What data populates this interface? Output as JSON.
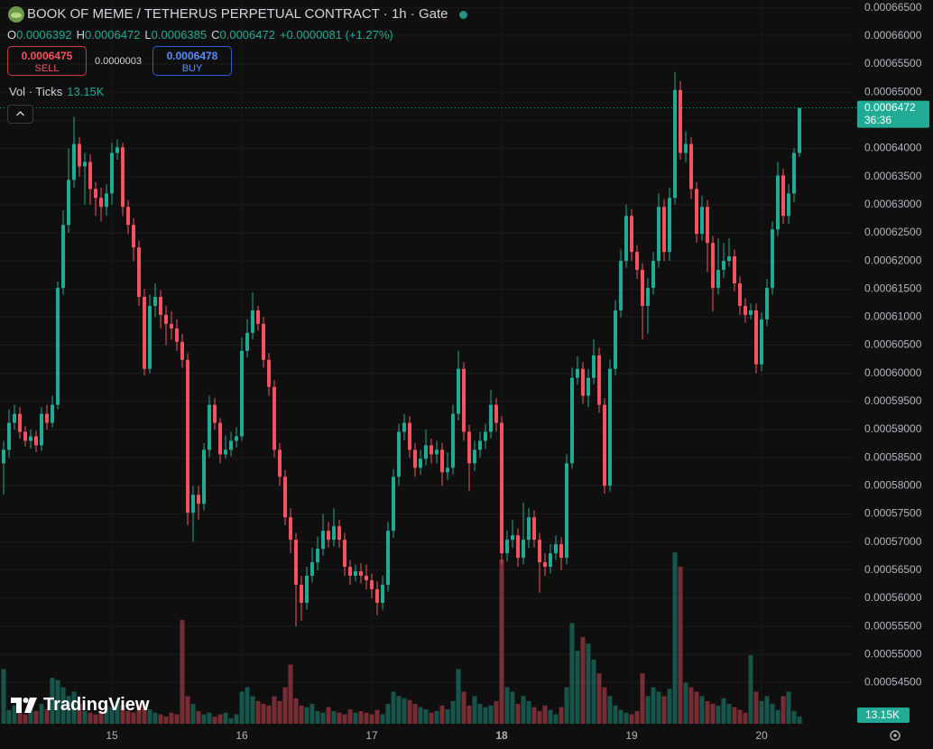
{
  "header": {
    "title": "BOOK OF MEME / TETHERUS PERPETUAL CONTRACT · 1h · Gate",
    "ohlc_keys": [
      "O",
      "H",
      "L",
      "C"
    ],
    "change": "+0.0000081 (+1.27%)",
    "sell_price": "0.0006475",
    "sell": "SELL",
    "spread": "0.0000003",
    "buy_price": "0.0006478",
    "buy": "BUY",
    "volume_title": "Vol · Ticks",
    "countdown": "36:36",
    "watermark": "TradingView"
  },
  "chart_data": {
    "type": "candlestick",
    "up_color": "#22ab94",
    "down_color": "#f7525f",
    "grid": true,
    "ylim": [
      0.0005372,
      0.0006664
    ],
    "yticks": [
      {
        "value": 0.000665,
        "label": "0.00066500"
      },
      {
        "value": 0.00066,
        "label": "0.00066000"
      },
      {
        "value": 0.000655,
        "label": "0.00065500"
      },
      {
        "value": 0.00065,
        "label": "0.00065000"
      },
      {
        "value": 0.000645,
        "label": "0.00064500"
      },
      {
        "value": 0.00064,
        "label": "0.00064000"
      },
      {
        "value": 0.000635,
        "label": "0.00063500"
      },
      {
        "value": 0.00063,
        "label": "0.00063000"
      },
      {
        "value": 0.000625,
        "label": "0.00062500"
      },
      {
        "value": 0.00062,
        "label": "0.00062000"
      },
      {
        "value": 0.000615,
        "label": "0.00061500"
      },
      {
        "value": 0.00061,
        "label": "0.00061000"
      },
      {
        "value": 0.000605,
        "label": "0.00060500"
      },
      {
        "value": 0.0006,
        "label": "0.00060000"
      },
      {
        "value": 0.000595,
        "label": "0.00059500"
      },
      {
        "value": 0.00059,
        "label": "0.00059000"
      },
      {
        "value": 0.000585,
        "label": "0.00058500"
      },
      {
        "value": 0.00058,
        "label": "0.00058000"
      },
      {
        "value": 0.000575,
        "label": "0.00057500"
      },
      {
        "value": 0.00057,
        "label": "0.00057000"
      },
      {
        "value": 0.000565,
        "label": "0.00056500"
      },
      {
        "value": 0.00056,
        "label": "0.00056000"
      },
      {
        "value": 0.000555,
        "label": "0.00055500"
      },
      {
        "value": 0.00055,
        "label": "0.00055000"
      },
      {
        "value": 0.000545,
        "label": "0.00054500"
      }
    ],
    "xticks": [
      {
        "value": 20,
        "label": "15"
      },
      {
        "value": 44,
        "label": "16"
      },
      {
        "value": 68,
        "label": "17"
      },
      {
        "value": 92,
        "label": "18"
      },
      {
        "value": 116,
        "label": "19"
      },
      {
        "value": 140,
        "label": "20"
      }
    ],
    "open": [
      0.000584,
      0.0005864,
      0.0005912,
      0.0005928,
      0.0005896,
      0.000588,
      0.0005888,
      0.0005872,
      0.0005928,
      0.0005912,
      0.0005944,
      0.0006152,
      0.0006264,
      0.0006344,
      0.0006408,
      0.0006368,
      0.0006376,
      0.0006328,
      0.0006312,
      0.0006296,
      0.000632,
      0.0006392,
      0.0006402,
      0.0006296,
      0.0006264,
      0.0006224,
      0.0006136,
      0.0006008,
      0.000612,
      0.0006136,
      0.0006104,
      0.0006088,
      0.000608,
      0.0006056,
      0.0006024,
      0.0005752,
      0.0005784,
      0.0005768,
      0.0005864,
      0.0005944,
      0.0005912,
      0.0005856,
      0.0005864,
      0.000588,
      0.0005888,
      0.000604,
      0.0006072,
      0.0006112,
      0.0006088,
      0.0006024,
      0.0005976,
      0.0005864,
      0.0005816,
      0.0005744,
      0.0005704,
      0.0005624,
      0.0005592,
      0.000564,
      0.0005664,
      0.0005688,
      0.000572,
      0.0005704,
      0.0005728,
      0.0005704,
      0.0005656,
      0.000564,
      0.0005648,
      0.000564,
      0.0005632,
      0.0005616,
      0.0005592,
      0.0005624,
      0.000572,
      0.0005816,
      0.0005896,
      0.0005912,
      0.0005864,
      0.0005832,
      0.0005848,
      0.0005872,
      0.0005856,
      0.0005864,
      0.0005824,
      0.0005832,
      0.0005928,
      0.0006008,
      0.0005896,
      0.000584,
      0.0005864,
      0.000588,
      0.0005896,
      0.0005944,
      0.0005912,
      0.000568,
      0.0005704,
      0.0005712,
      0.0005672,
      0.0005704,
      0.0005744,
      0.0005704,
      0.0005664,
      0.0005656,
      0.000568,
      0.0005696,
      0.0005672,
      0.000584,
      0.0005992,
      0.0006008,
      0.000596,
      0.0005992,
      0.0006032,
      0.0005944,
      0.00058,
      0.0006008,
      0.0006112,
      0.00062,
      0.000628,
      0.0006216,
      0.0006184,
      0.000612,
      0.0006152,
      0.00062,
      0.0006296,
      0.0006216,
      0.0006312,
      0.0006504,
      0.0006392,
      0.0006408,
      0.0006328,
      0.0006248,
      0.0006296,
      0.0006232,
      0.0006152,
      0.0006184,
      0.00062,
      0.0006208,
      0.000616,
      0.000612,
      0.0006104,
      0.0006112,
      0.0006016,
      0.0006096,
      0.0006152,
      0.0006256,
      0.0006352,
      0.000628,
      0.000632,
      0.0006392
    ],
    "high": [
      0.000588,
      0.0005936,
      0.0005944,
      0.000594,
      0.0005906,
      0.00059,
      0.0005898,
      0.000594,
      0.0005944,
      0.000596,
      0.0006164,
      0.000629,
      0.00064,
      0.0006456,
      0.000642,
      0.0006392,
      0.000639,
      0.000634,
      0.000633,
      0.0006336,
      0.000641,
      0.0006416,
      0.000641,
      0.0006308,
      0.0006276,
      0.0006236,
      0.000615,
      0.000614,
      0.000616,
      0.0006148,
      0.000612,
      0.000611,
      0.0006096,
      0.000607,
      0.0006036,
      0.00058,
      0.00058,
      0.0005876,
      0.000596,
      0.0005956,
      0.000592,
      0.000589,
      0.0005896,
      0.0005904,
      0.0006064,
      0.0006096,
      0.0006144,
      0.000612,
      0.00061,
      0.0006036,
      0.0005988,
      0.0005876,
      0.0005828,
      0.000576,
      0.0005716,
      0.000564,
      0.0005656,
      0.000569,
      0.000571,
      0.000575,
      0.0005736,
      0.000576,
      0.000574,
      0.0005716,
      0.0005668,
      0.000566,
      0.0005662,
      0.000566,
      0.0005644,
      0.000563,
      0.000564,
      0.0005736,
      0.000583,
      0.000591,
      0.0005928,
      0.0005924,
      0.0005876,
      0.0005864,
      0.00059,
      0.0005884,
      0.000588,
      0.0005876,
      0.000586,
      0.0005944,
      0.000604,
      0.000602,
      0.0005908,
      0.000588,
      0.0005896,
      0.000591,
      0.000597,
      0.0005956,
      0.0005924,
      0.000572,
      0.000574,
      0.0005724,
      0.000577,
      0.000576,
      0.0005756,
      0.0005716,
      0.000568,
      0.0005696,
      0.0005712,
      0.0005708,
      0.0005856,
      0.000601,
      0.000603,
      0.000602,
      0.0006008,
      0.000606,
      0.0006046,
      0.0005956,
      0.0006024,
      0.000613,
      0.000622,
      0.00063,
      0.0006292,
      0.0006228,
      0.0006196,
      0.000617,
      0.0006216,
      0.000632,
      0.000631,
      0.000633,
      0.0006536,
      0.000652,
      0.000643,
      0.000642,
      0.000634,
      0.0006316,
      0.0006308,
      0.0006244,
      0.000624,
      0.0006232,
      0.000624,
      0.000622,
      0.0006172,
      0.0006134,
      0.0006124,
      0.0006124,
      0.0006108,
      0.0006168,
      0.000627,
      0.0006376,
      0.0006364,
      0.0006336,
      0.00064,
      0.0006472
    ],
    "low": [
      0.0005784,
      0.000585,
      0.00059,
      0.0005884,
      0.000587,
      0.0005866,
      0.000586,
      0.0005862,
      0.00059,
      0.0005904,
      0.0005936,
      0.000614,
      0.000625,
      0.000633,
      0.000635,
      0.00063,
      0.00063,
      0.000628,
      0.000627,
      0.000628,
      0.00063,
      0.000638,
      0.000628,
      0.0006248,
      0.00062,
      0.000612,
      0.0005996,
      0.0006,
      0.00061,
      0.000608,
      0.000605,
      0.000606,
      0.000604,
      0.000601,
      0.000573,
      0.00057,
      0.000574,
      0.0005756,
      0.000585,
      0.00059,
      0.000584,
      0.0005848,
      0.0005852,
      0.0005868,
      0.000588,
      0.0006028,
      0.000606,
      0.0006076,
      0.000601,
      0.000596,
      0.000585,
      0.00058,
      0.000573,
      0.000568,
      0.000555,
      0.000556,
      0.000558,
      0.0005628,
      0.000565,
      0.0005676,
      0.000569,
      0.0005692,
      0.000569,
      0.000564,
      0.0005624,
      0.000563,
      0.0005626,
      0.0005616,
      0.00056,
      0.000557,
      0.000558,
      0.0005612,
      0.0005708,
      0.00058,
      0.000588,
      0.000585,
      0.0005816,
      0.000582,
      0.0005836,
      0.000584,
      0.000584,
      0.00058,
      0.000581,
      0.000582,
      0.0005916,
      0.000588,
      0.000579,
      0.0005826,
      0.000585,
      0.0005866,
      0.0005884,
      0.0005896,
      0.000566,
      0.0005666,
      0.000569,
      0.0005656,
      0.000566,
      0.000569,
      0.000569,
      0.000561,
      0.000564,
      0.0005644,
      0.0005668,
      0.000565,
      0.000566,
      0.000583,
      0.000598,
      0.0005946,
      0.000594,
      0.000598,
      0.000593,
      0.0005786,
      0.000579,
      0.0005996,
      0.00061,
      0.0006188,
      0.00062,
      0.0006168,
      0.000606,
      0.000607,
      0.000614,
      0.0006188,
      0.00062,
      0.00062,
      0.00063,
      0.000638,
      0.0006376,
      0.000631,
      0.0006232,
      0.0006236,
      0.000618,
      0.000611,
      0.000614,
      0.000617,
      0.000619,
      0.0006146,
      0.0006104,
      0.000609,
      0.0006096,
      0.0006,
      0.0006004,
      0.0006084,
      0.000614,
      0.0006244,
      0.0006266,
      0.0006266,
      0.0006304,
      0.0006385
    ],
    "close": [
      0.0005864,
      0.0005912,
      0.0005928,
      0.0005896,
      0.000588,
      0.0005888,
      0.0005872,
      0.0005928,
      0.0005912,
      0.0005944,
      0.0006152,
      0.0006264,
      0.0006344,
      0.0006408,
      0.0006368,
      0.0006376,
      0.0006328,
      0.0006312,
      0.0006296,
      0.000632,
      0.0006392,
      0.0006402,
      0.0006296,
      0.0006264,
      0.0006224,
      0.0006136,
      0.0006008,
      0.000612,
      0.0006136,
      0.0006104,
      0.0006088,
      0.000608,
      0.0006056,
      0.0006024,
      0.0005752,
      0.0005784,
      0.0005768,
      0.0005864,
      0.0005944,
      0.0005912,
      0.0005856,
      0.0005864,
      0.000588,
      0.0005888,
      0.000604,
      0.0006072,
      0.0006112,
      0.0006088,
      0.0006024,
      0.0005976,
      0.0005864,
      0.0005816,
      0.0005744,
      0.0005704,
      0.0005624,
      0.0005592,
      0.000564,
      0.0005664,
      0.0005688,
      0.000572,
      0.0005704,
      0.0005728,
      0.0005704,
      0.0005656,
      0.000564,
      0.0005648,
      0.000564,
      0.0005632,
      0.0005616,
      0.0005592,
      0.0005624,
      0.000572,
      0.0005816,
      0.0005896,
      0.0005912,
      0.0005864,
      0.0005832,
      0.0005848,
      0.0005872,
      0.0005856,
      0.0005864,
      0.0005824,
      0.0005832,
      0.0005928,
      0.0006008,
      0.0005896,
      0.000584,
      0.0005864,
      0.000588,
      0.0005896,
      0.0005944,
      0.0005912,
      0.000568,
      0.0005704,
      0.0005712,
      0.0005672,
      0.0005704,
      0.0005744,
      0.0005704,
      0.0005664,
      0.0005656,
      0.000568,
      0.0005696,
      0.0005672,
      0.000584,
      0.0005992,
      0.0006008,
      0.000596,
      0.0005992,
      0.0006032,
      0.0005944,
      0.00058,
      0.0006008,
      0.0006112,
      0.00062,
      0.000628,
      0.0006216,
      0.0006184,
      0.000612,
      0.0006152,
      0.00062,
      0.0006296,
      0.0006216,
      0.0006312,
      0.0006504,
      0.0006392,
      0.0006408,
      0.0006328,
      0.0006248,
      0.0006296,
      0.0006232,
      0.0006152,
      0.0006184,
      0.00062,
      0.0006208,
      0.000616,
      0.000612,
      0.0006104,
      0.0006112,
      0.0006016,
      0.0006096,
      0.0006152,
      0.0006256,
      0.0006352,
      0.000628,
      0.000632,
      0.0006392,
      0.0006472
    ],
    "volume": [
      99,
      25,
      33,
      20,
      17,
      30,
      23,
      36,
      26,
      83,
      79,
      66,
      50,
      58,
      36,
      23,
      20,
      17,
      23,
      33,
      30,
      41,
      33,
      23,
      20,
      33,
      36,
      26,
      20,
      17,
      13,
      20,
      17,
      188,
      50,
      36,
      23,
      17,
      20,
      13,
      17,
      20,
      10,
      17,
      58,
      66,
      50,
      41,
      36,
      33,
      50,
      41,
      66,
      107,
      46,
      33,
      30,
      36,
      23,
      20,
      30,
      23,
      20,
      17,
      26,
      20,
      23,
      20,
      17,
      25,
      17,
      36,
      58,
      50,
      46,
      43,
      36,
      30,
      26,
      20,
      23,
      33,
      26,
      41,
      99,
      58,
      33,
      50,
      36,
      30,
      33,
      41,
      297,
      66,
      58,
      36,
      50,
      41,
      30,
      23,
      33,
      25,
      17,
      30,
      66,
      182,
      132,
      157,
      145,
      116,
      91,
      66,
      50,
      33,
      25,
      20,
      17,
      23,
      91,
      50,
      66,
      58,
      50,
      63,
      310,
      284,
      74,
      66,
      58,
      50,
      41,
      36,
      33,
      46,
      36,
      30,
      25,
      20,
      124,
      58,
      41,
      50,
      36,
      25,
      50,
      58,
      23,
      13.15
    ],
    "volume_last_label": "13.15K"
  }
}
